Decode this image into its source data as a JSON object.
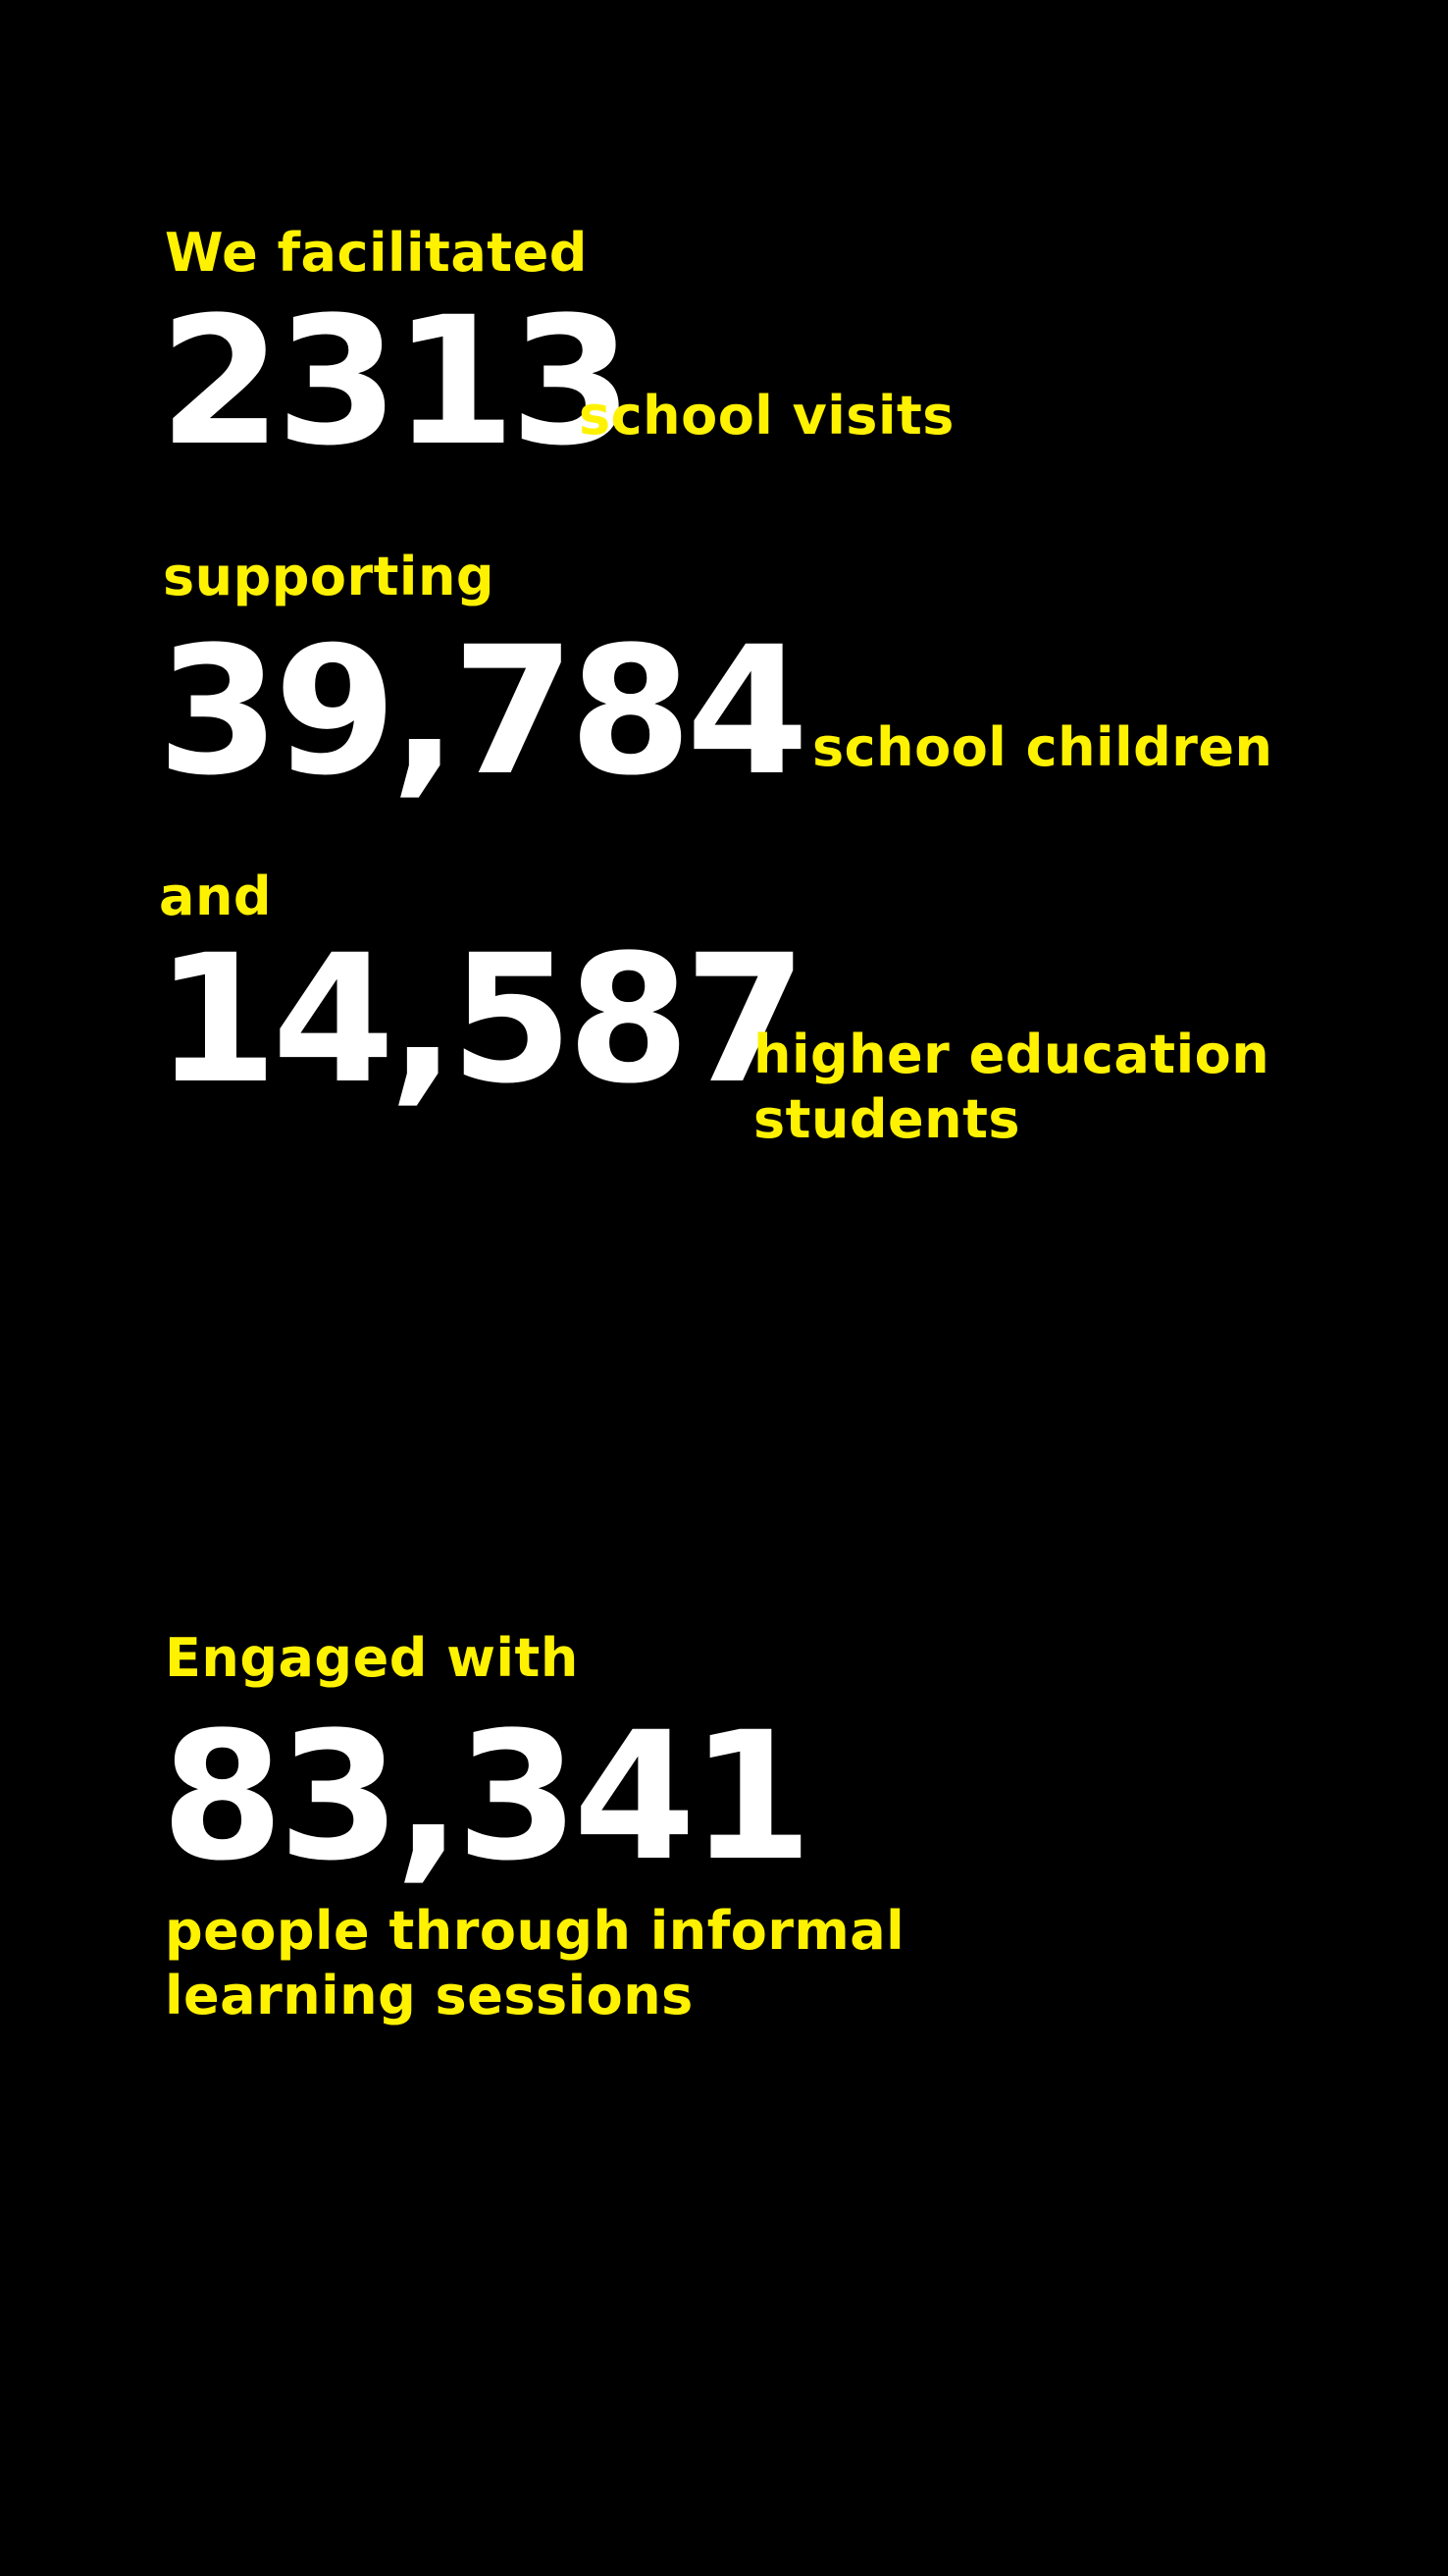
{
  "colors": {
    "background": "#000000",
    "accent": "#FFF200",
    "number": "#FFFFFF"
  },
  "stats": {
    "visits": {
      "intro": "We facilitated",
      "value": "2313",
      "label": "school visits"
    },
    "children": {
      "intro": "supporting",
      "value": "39,784",
      "label": "school children"
    },
    "students": {
      "intro": "and",
      "value": "14,587",
      "label_line1": "higher education",
      "label_line2": "students"
    },
    "engaged": {
      "intro": "Engaged with",
      "value": "83,341",
      "label_line1": "people through informal",
      "label_line2": "learning sessions"
    }
  }
}
